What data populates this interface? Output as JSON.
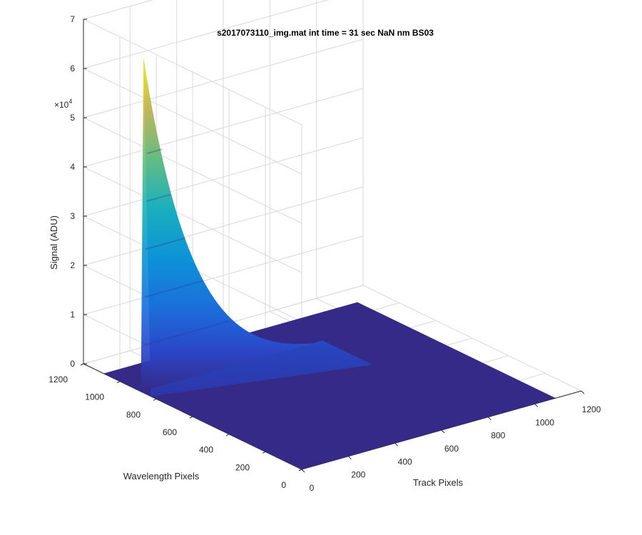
{
  "chart_data": {
    "type": "surface",
    "title": "s2017073110_img.mat int time = 31 sec  NaN nm BS03",
    "xlabel": "Track Pixels",
    "ylabel": "Wavelength Pixels",
    "zlabel": "Signal (ADU)",
    "z_exponent_label": "×10",
    "z_exponent_power": "4",
    "xlim": [
      0,
      1200
    ],
    "ylim": [
      0,
      1200
    ],
    "zlim": [
      0,
      70000
    ],
    "x_ticks": [
      0,
      200,
      400,
      600,
      800,
      1000,
      1200
    ],
    "y_ticks": [
      0,
      200,
      400,
      600,
      800,
      1000,
      1200
    ],
    "z_ticks": [
      0,
      1,
      2,
      3,
      4,
      5,
      6,
      7
    ],
    "x_tick_labels": [
      "0",
      "200",
      "400",
      "600",
      "800",
      "1000",
      "1200"
    ],
    "y_tick_labels": [
      "0",
      "200",
      "400",
      "600",
      "800",
      "1000",
      "1200"
    ],
    "z_tick_labels": [
      "0",
      "1",
      "2",
      "3",
      "4",
      "5",
      "6",
      "7"
    ],
    "grid": true,
    "colormap": "parula",
    "surface": {
      "x_range": [
        0,
        1090
      ],
      "y_range": [
        0,
        1090
      ],
      "peak_track_pixel": 0,
      "peak_wavelength_pixel": 870,
      "peak_signal": 68000,
      "baseline_signal": 0
    }
  }
}
